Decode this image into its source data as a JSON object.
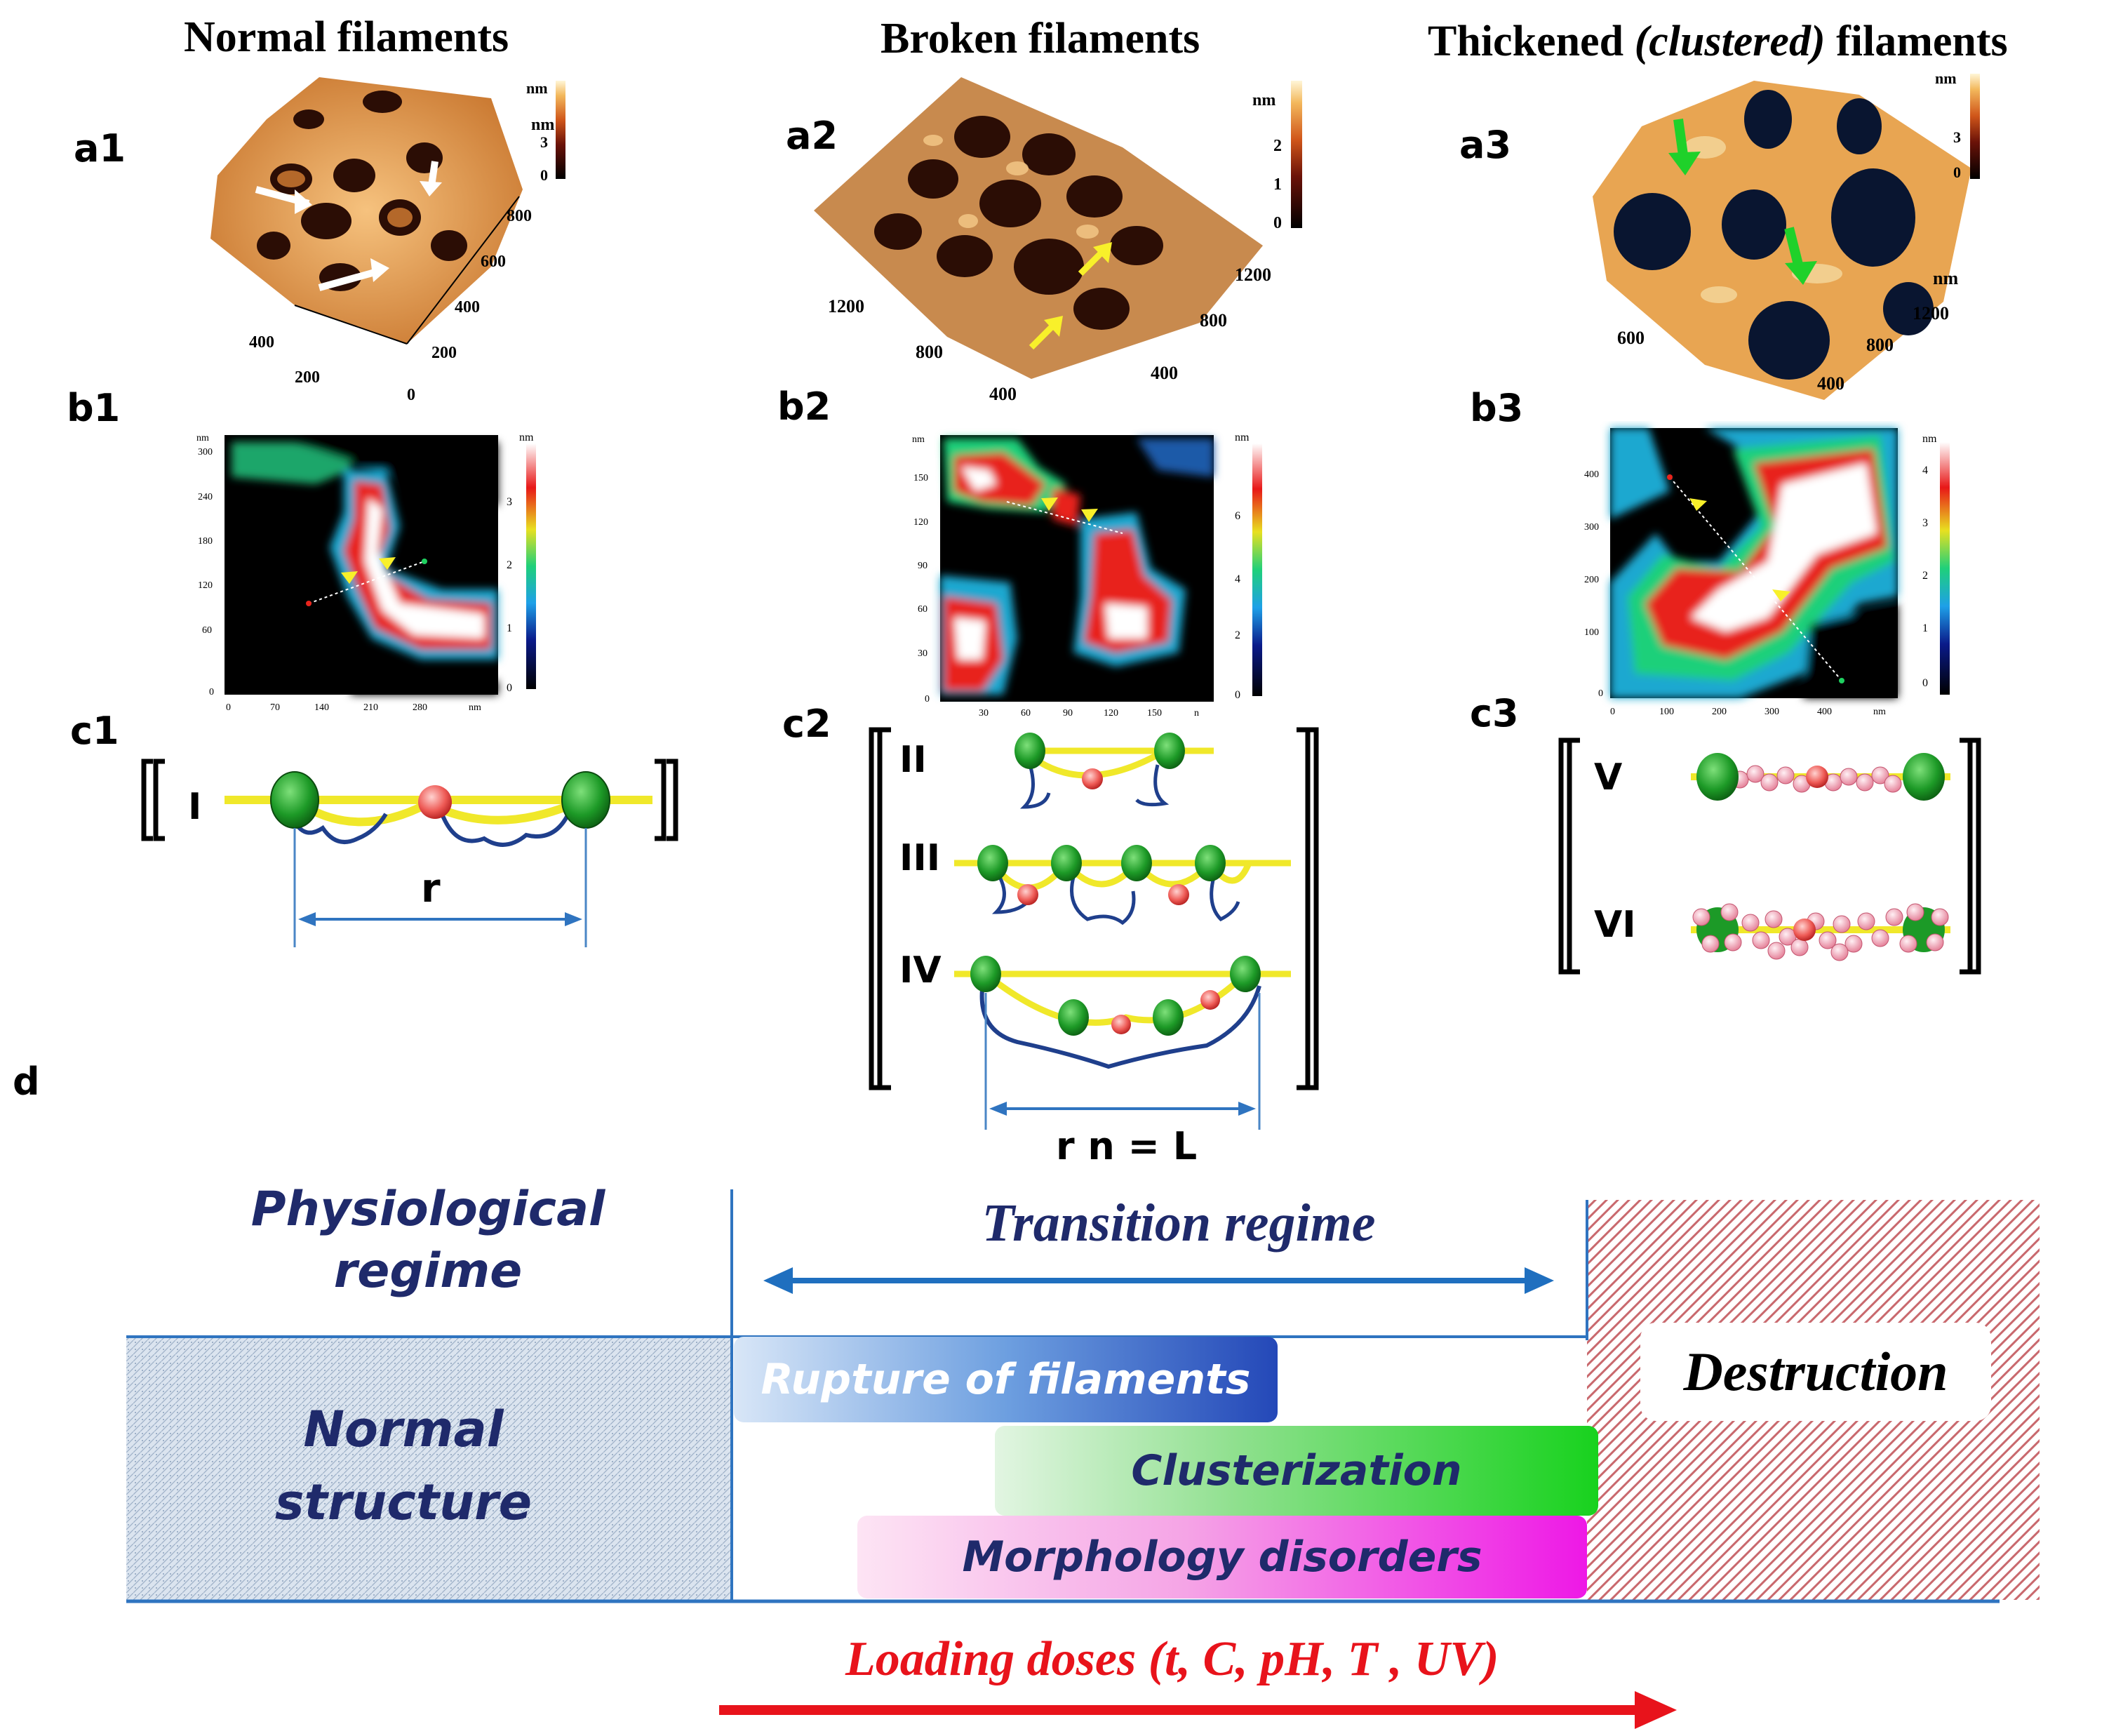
{
  "columns": {
    "normal": {
      "title": "Normal filaments"
    },
    "broken": {
      "title": "Broken filaments"
    },
    "thick": {
      "title_pre": "Thickened ",
      "title_em": "(clustered)",
      "title_post": " filaments"
    }
  },
  "panels": {
    "a1": "a1",
    "a2": "a2",
    "a3": "a3",
    "b1": "b1",
    "b2": "b2",
    "b3": "b3",
    "c1": "c1",
    "c2": "c2",
    "c3": "c3",
    "d": "d"
  },
  "afm3d": {
    "a1": {
      "scale_unit": "nm",
      "scale_ticks": [
        "3",
        "0"
      ],
      "axis_unit": "nm",
      "axis_right": [
        "800",
        "600",
        "400",
        "200",
        "0"
      ],
      "axis_left": [
        "400",
        "200"
      ]
    },
    "a2": {
      "scale_unit": "nm",
      "scale_ticks": [
        "2",
        "1",
        "0"
      ],
      "axis_unit": "nm",
      "axis_left": [
        "1200",
        "800",
        "400"
      ],
      "axis_right": [
        "1200",
        "800",
        "400"
      ]
    },
    "a3": {
      "scale_unit": "nm",
      "scale_ticks": [
        "3",
        "0"
      ],
      "axis_unit": "nm",
      "axis_left": [
        "600"
      ],
      "axis_right": [
        "1200",
        "800",
        "400"
      ]
    }
  },
  "afm2d": {
    "b1": {
      "unit": "nm",
      "y_ticks": [
        "300",
        "240",
        "180",
        "120",
        "60",
        "0"
      ],
      "x_ticks": [
        "0",
        "70",
        "140",
        "210",
        "280",
        "nm"
      ],
      "cbar_ticks": [
        "3",
        "2",
        "1",
        "0"
      ]
    },
    "b2": {
      "unit": "nm",
      "y_ticks": [
        "150",
        "120",
        "90",
        "60",
        "30",
        "0"
      ],
      "x_ticks": [
        "30",
        "60",
        "90",
        "120",
        "150",
        "n"
      ],
      "cbar_ticks": [
        "6",
        "4",
        "2",
        "0"
      ]
    },
    "b3": {
      "unit": "nm",
      "y_ticks": [
        "400",
        "300",
        "200",
        "100",
        "0"
      ],
      "x_ticks": [
        "0",
        "100",
        "200",
        "300",
        "400",
        "nm"
      ],
      "cbar_ticks": [
        "4",
        "3",
        "2",
        "1",
        "0"
      ]
    }
  },
  "schemes": {
    "c1": {
      "labels": [
        "I"
      ],
      "measure": "r"
    },
    "c2": {
      "labels": [
        "II",
        "III",
        "IV"
      ],
      "measure": "r n = L"
    },
    "c3": {
      "labels": [
        "V",
        "VI"
      ]
    }
  },
  "diagram_d": {
    "physiological": "Physiological regime",
    "physiological_l1": "Physiological",
    "physiological_l2": "regime",
    "transition": "Transition regime",
    "normal_l1": "Normal",
    "normal_l2": "structure",
    "destruction": "Destruction",
    "rupture": "Rupture of filaments",
    "cluster": "Clusterization",
    "morph": "Morphology disorders",
    "loading": "Loading doses (t, C, pH, T , UV)",
    "colors": {
      "navy": "#1f2a6b",
      "blue": "#1f6fbf",
      "red": "#e8131b",
      "green": "#18d21e",
      "magenta": "#ee18e6",
      "hatch": "#c9686d"
    }
  }
}
